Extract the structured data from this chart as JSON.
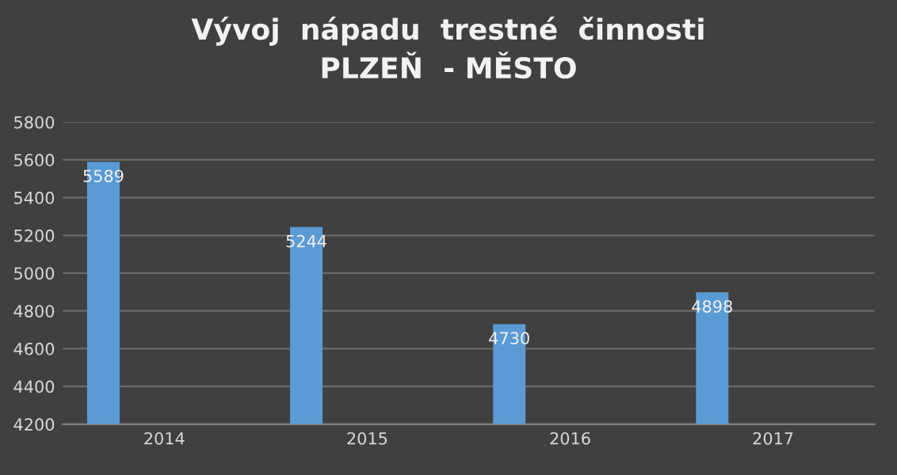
{
  "chart_data": {
    "type": "bar",
    "title": "Vývoj  nápadu  trestné  činnosti\nPLZEŇ  - MĚSTO",
    "categories": [
      "2014",
      "2015",
      "2016",
      "2017"
    ],
    "series": [
      {
        "color": "#5b9bd5",
        "values": [
          5589,
          5244,
          4730,
          4898
        ]
      }
    ],
    "ylim": [
      4200,
      5800
    ],
    "yticks": [
      4200,
      4400,
      4600,
      4800,
      5000,
      5200,
      5400,
      5600,
      5800
    ],
    "grid": "y",
    "data_labels": true,
    "legend": false
  }
}
